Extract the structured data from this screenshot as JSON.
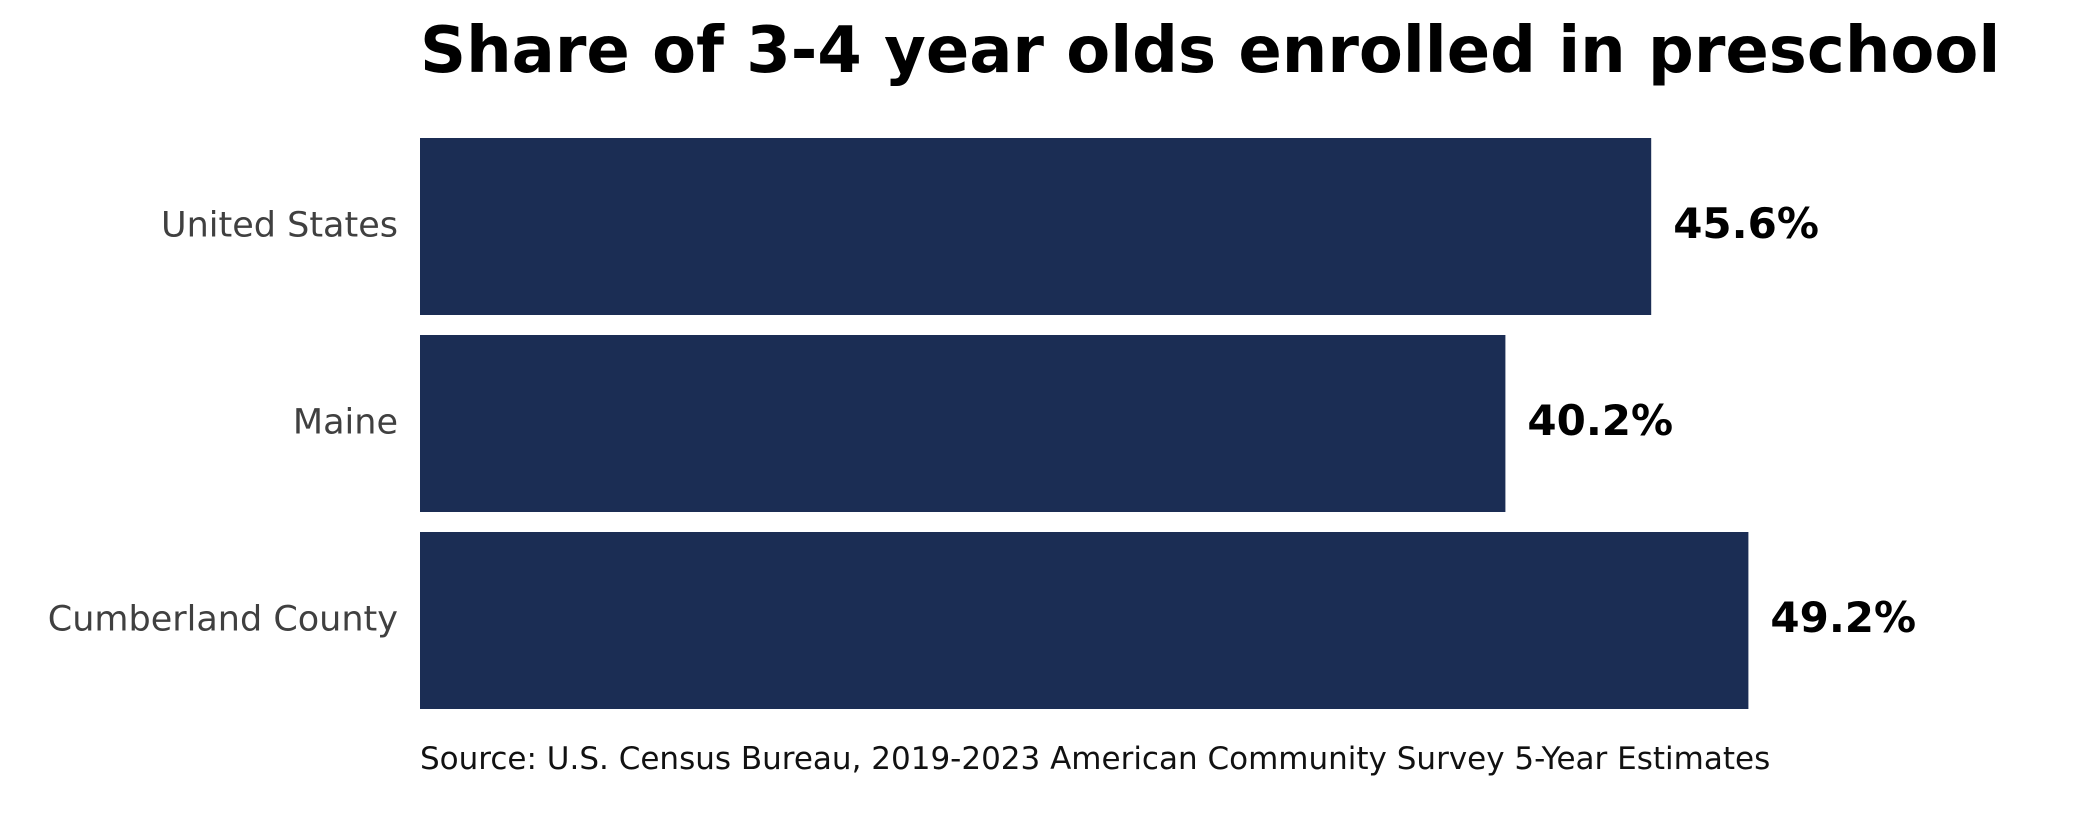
{
  "chart_data": {
    "type": "bar",
    "orientation": "horizontal",
    "title": "Share of 3-4 year olds enrolled in preschool",
    "categories": [
      "United States",
      "Maine",
      "Cumberland County"
    ],
    "values": [
      45.6,
      40.2,
      49.2
    ],
    "value_labels": [
      "45.6%",
      "40.2%",
      "49.2%"
    ],
    "xlim": [
      0,
      100
    ],
    "xlabel": "",
    "ylabel": "",
    "grid": false,
    "legend": "none",
    "bar_color": "#1b2d54",
    "source": "Source: U.S. Census Bureau, 2019-2023 American Community Survey 5-Year Estimates"
  }
}
